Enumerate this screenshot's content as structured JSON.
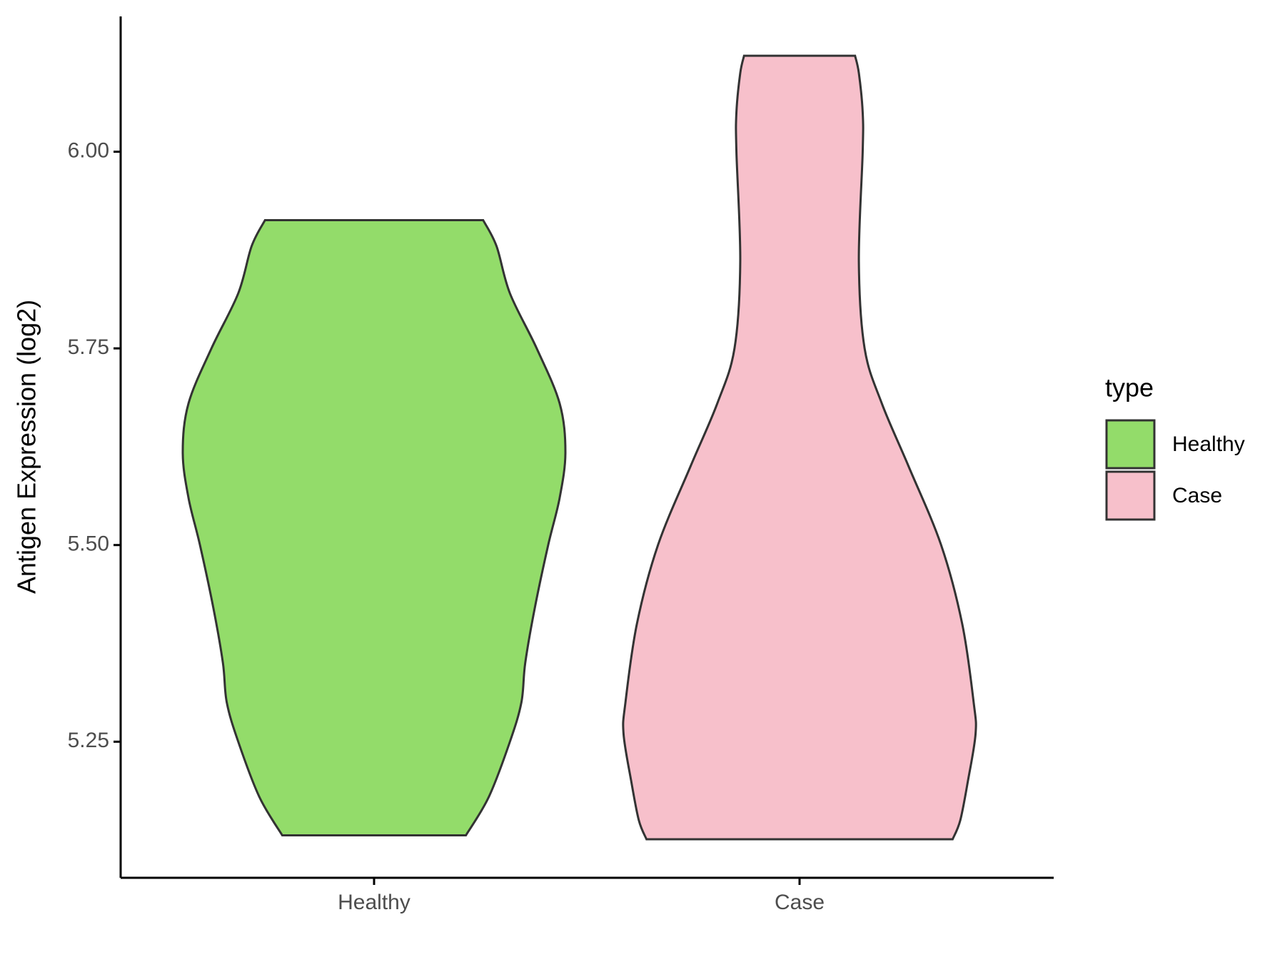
{
  "chart_data": {
    "type": "violin",
    "y_label": "Antigen Expression (log2)",
    "categories": [
      "Healthy",
      "Case"
    ],
    "ylim": [
      5.077,
      6.172
    ],
    "yticks": [
      {
        "value": 5.25,
        "label": "5.25"
      },
      {
        "value": 5.5,
        "label": "5.50"
      },
      {
        "value": 5.75,
        "label": "5.75"
      },
      {
        "value": 6,
        "label": "6.00"
      }
    ],
    "legend_title": "type",
    "legend": "right",
    "series": [
      {
        "name": "Healthy",
        "color": "#93dc6a",
        "y": [
          5.131,
          5.18,
          5.25,
          5.3,
          5.35,
          5.42,
          5.5,
          5.56,
          5.618,
          5.68,
          5.75,
          5.82,
          5.88,
          5.913
        ],
        "density": [
          0.48,
          0.6,
          0.71,
          0.77,
          0.79,
          0.84,
          0.91,
          0.97,
          1.0,
          0.97,
          0.85,
          0.71,
          0.64,
          0.57
        ]
      },
      {
        "name": "Case",
        "color": "#f7c0cb",
        "y": [
          5.126,
          5.15,
          5.2,
          5.26,
          5.3,
          5.4,
          5.5,
          5.6,
          5.68,
          5.75,
          5.86,
          6.0,
          6.05,
          6.1,
          6.122
        ],
        "density": [
          0.8,
          0.84,
          0.88,
          0.92,
          0.91,
          0.85,
          0.74,
          0.57,
          0.43,
          0.34,
          0.31,
          0.33,
          0.33,
          0.31,
          0.29
        ]
      }
    ]
  }
}
